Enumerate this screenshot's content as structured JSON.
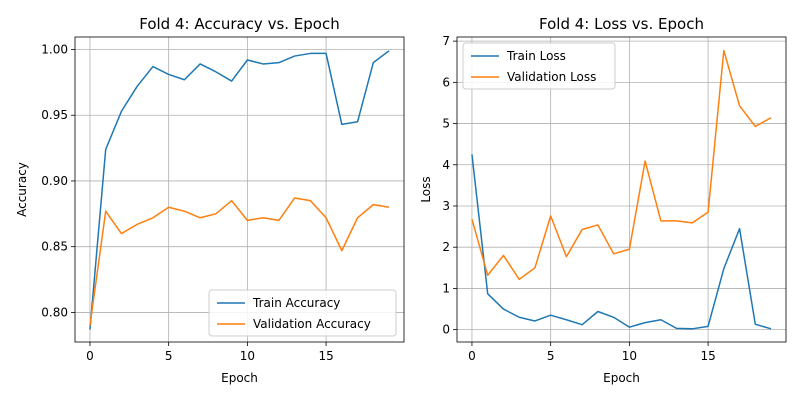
{
  "chart_data": [
    {
      "type": "line",
      "title": "Fold 4: Accuracy vs. Epoch",
      "xlabel": "Epoch",
      "ylabel": "Accuracy",
      "xlim": [
        -0.95,
        19.95
      ],
      "ylim": [
        0.7775,
        1.0095
      ],
      "xticks": [
        0,
        5,
        10,
        15
      ],
      "yticks": [
        0.8,
        0.85,
        0.9,
        0.95,
        1.0
      ],
      "ytick_labels": [
        "0.80",
        "0.85",
        "0.90",
        "0.95",
        "1.00"
      ],
      "grid": true,
      "legend": "lower-right",
      "x": [
        0,
        1,
        2,
        3,
        4,
        5,
        6,
        7,
        8,
        9,
        10,
        11,
        12,
        13,
        14,
        15,
        16,
        17,
        18,
        19
      ],
      "series": [
        {
          "name": "Train Accuracy",
          "color": "#1f77b4",
          "values": [
            0.787,
            0.924,
            0.953,
            0.972,
            0.987,
            0.981,
            0.977,
            0.989,
            0.983,
            0.976,
            0.992,
            0.989,
            0.99,
            0.995,
            0.997,
            0.997,
            0.943,
            0.945,
            0.99,
            0.999
          ]
        },
        {
          "name": "Validation Accuracy",
          "color": "#ff7f0e",
          "values": [
            0.79,
            0.877,
            0.86,
            0.867,
            0.872,
            0.88,
            0.877,
            0.872,
            0.875,
            0.885,
            0.87,
            0.872,
            0.87,
            0.887,
            0.885,
            0.872,
            0.847,
            0.872,
            0.882,
            0.88
          ]
        }
      ]
    },
    {
      "type": "line",
      "title": "Fold 4: Loss vs. Epoch",
      "xlabel": "Epoch",
      "ylabel": "Loss",
      "xlim": [
        -0.95,
        19.95
      ],
      "ylim": [
        -0.3,
        7.1
      ],
      "xticks": [
        0,
        5,
        10,
        15
      ],
      "yticks": [
        0,
        1,
        2,
        3,
        4,
        5,
        6,
        7
      ],
      "ytick_labels": [
        "0",
        "1",
        "2",
        "3",
        "4",
        "5",
        "6",
        "7"
      ],
      "grid": true,
      "legend": "top-left",
      "x": [
        0,
        1,
        2,
        3,
        4,
        5,
        6,
        7,
        8,
        9,
        10,
        11,
        12,
        13,
        14,
        15,
        16,
        17,
        18,
        19
      ],
      "series": [
        {
          "name": "Train Loss",
          "color": "#1f77b4",
          "values": [
            4.25,
            0.87,
            0.5,
            0.3,
            0.21,
            0.35,
            0.24,
            0.12,
            0.44,
            0.3,
            0.06,
            0.17,
            0.24,
            0.03,
            0.02,
            0.08,
            1.48,
            2.45,
            0.13,
            0.02
          ]
        },
        {
          "name": "Validation Loss",
          "color": "#ff7f0e",
          "values": [
            2.68,
            1.32,
            1.8,
            1.22,
            1.5,
            2.76,
            1.77,
            2.43,
            2.54,
            1.84,
            1.95,
            4.09,
            2.64,
            2.64,
            2.59,
            2.85,
            6.77,
            5.43,
            4.93,
            5.14
          ]
        }
      ]
    }
  ]
}
